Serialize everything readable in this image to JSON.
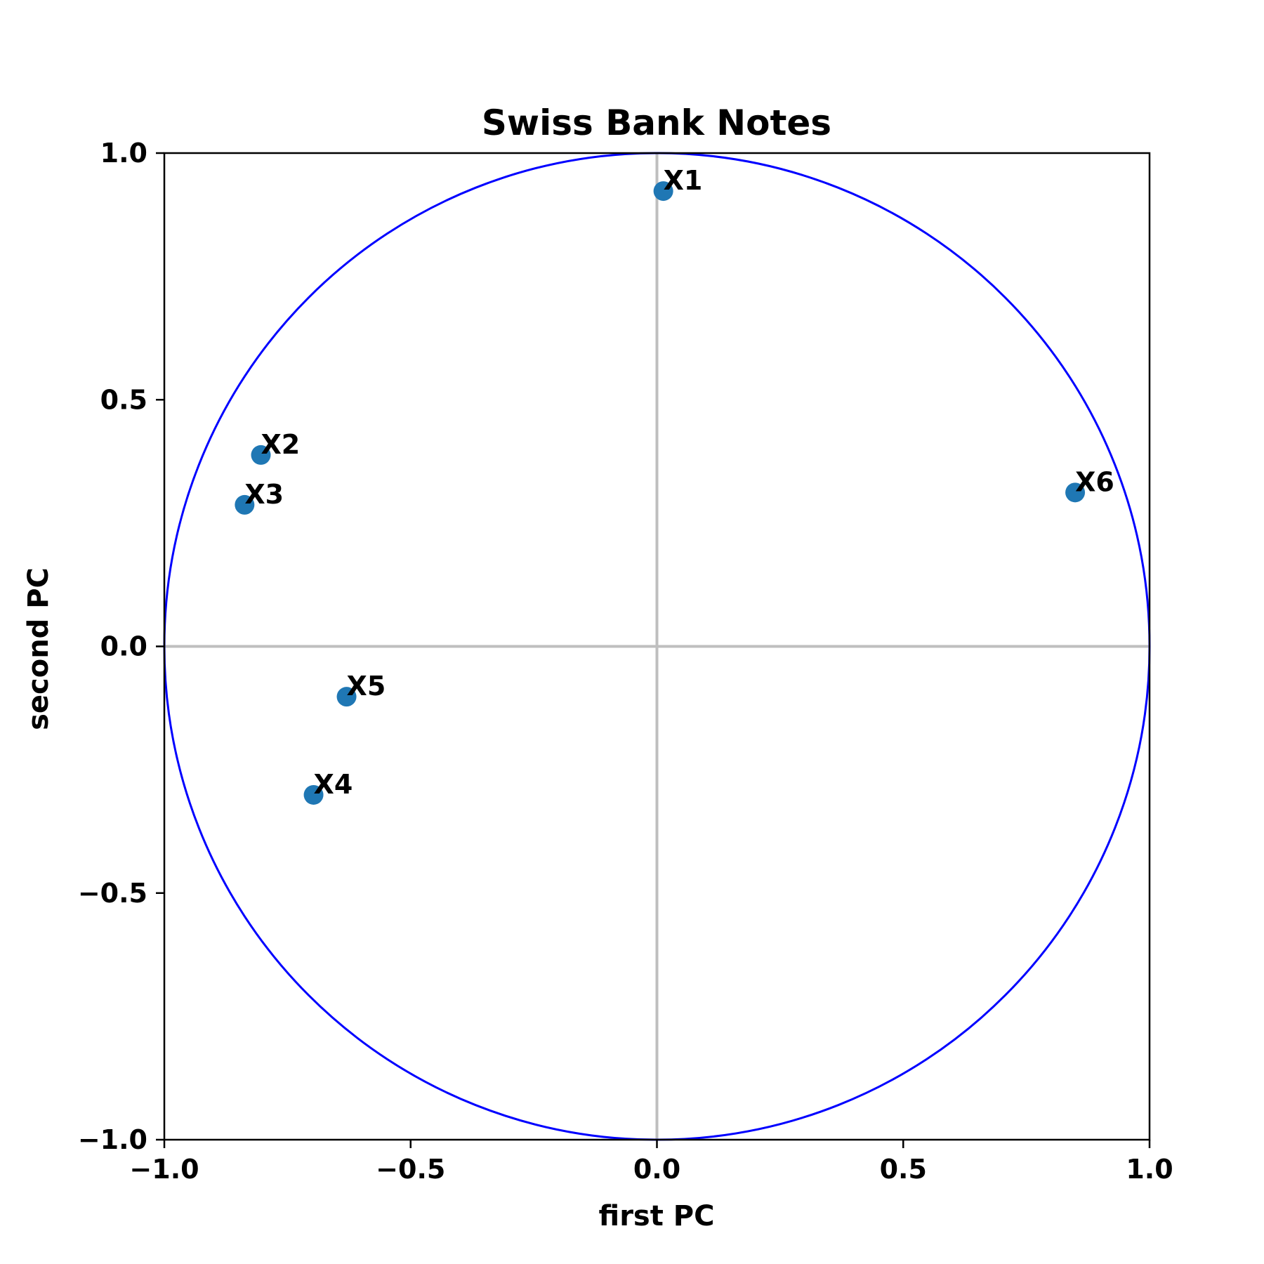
{
  "chart_data": {
    "type": "scatter",
    "title": "Swiss Bank Notes",
    "xlabel": "first PC",
    "ylabel": "second PC",
    "xlim": [
      -1.0,
      1.0
    ],
    "ylim": [
      -1.0,
      1.0
    ],
    "xticks": [
      "−1.0",
      "−0.5",
      "0.0",
      "0.5",
      "1.0"
    ],
    "yticks": [
      "−1.0",
      "−0.5",
      "0.0",
      "0.5",
      "1.0"
    ],
    "xtick_values": [
      -1.0,
      -0.5,
      0.0,
      0.5,
      1.0
    ],
    "ytick_values": [
      -1.0,
      -0.5,
      0.0,
      0.5,
      1.0
    ],
    "grid": false,
    "unit_circle": true,
    "reference_lines": {
      "x": 0.0,
      "y": 0.0
    },
    "colors": {
      "points": "#1f77b4",
      "circle": "#0000ff",
      "reference_lines": "#bfbfbf",
      "axes": "#000000"
    },
    "points": [
      {
        "label": "X1",
        "x": 0.013,
        "y": 0.923
      },
      {
        "label": "X2",
        "x": -0.804,
        "y": 0.388
      },
      {
        "label": "X3",
        "x": -0.837,
        "y": 0.287
      },
      {
        "label": "X4",
        "x": -0.697,
        "y": -0.301
      },
      {
        "label": "X5",
        "x": -0.63,
        "y": -0.102
      },
      {
        "label": "X6",
        "x": 0.849,
        "y": 0.312
      }
    ]
  }
}
